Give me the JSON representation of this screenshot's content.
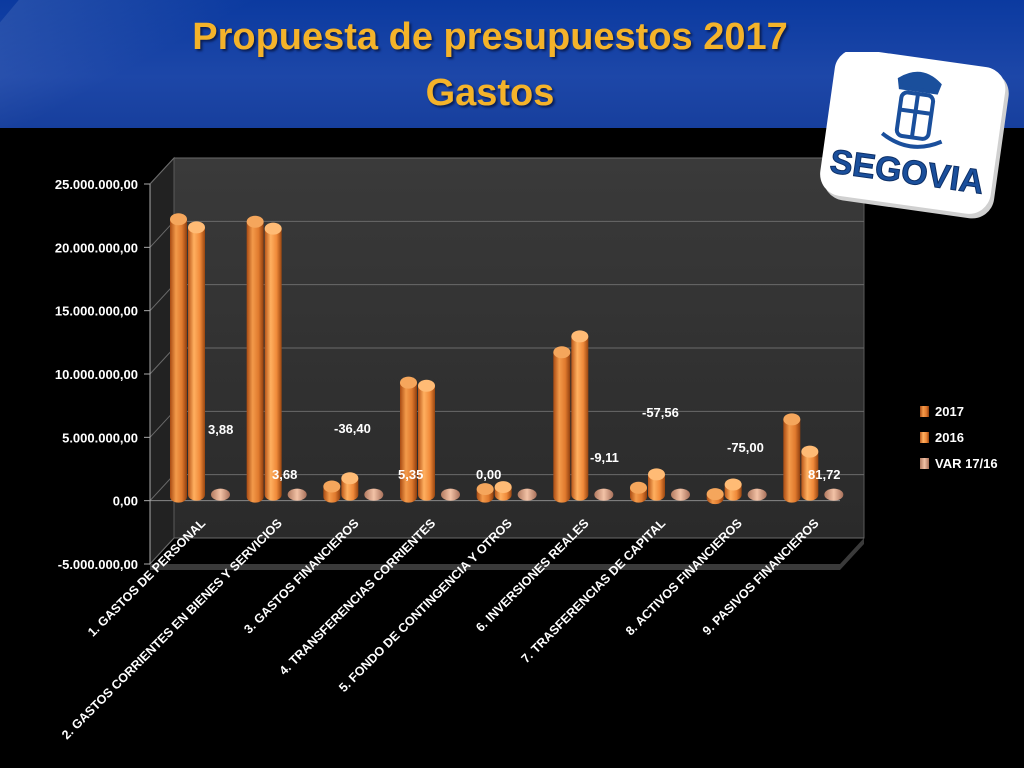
{
  "header": {
    "title_line1": "Propuesta de presupuestos 2017",
    "title_line2": "Gastos"
  },
  "logo": {
    "text": "SEGOVIA",
    "icon": "segovia-crest-icon"
  },
  "colors": {
    "title": "#f4b32a",
    "header_bg": "#1d47a8",
    "series_2017": "#e07a2e",
    "series_2016": "#f08a3a",
    "series_var": "#e3aa8c"
  },
  "chart_data": {
    "type": "bar",
    "categories": [
      "1. GASTOS DE PERSONAL",
      "2. GASTOS CORRIENTES EN BIENES Y SERVICIOS",
      "3. GASTOS FINANCIEROS",
      "4. TRANSFERENCIAS CORRIENTES",
      "5. FONDO DE CONTINGENCIA Y OTROS",
      "6. INVERSIONES REALES",
      "7. TRASFERENCIAS DE CAPITAL",
      "8. ACTIVOS FINANCIEROS",
      "9. PASIVOS FINANCIEROS"
    ],
    "series": [
      {
        "name": "2017",
        "values": [
          21900000,
          21700000,
          800000,
          9000000,
          600000,
          11400000,
          700000,
          200000,
          6100000
        ]
      },
      {
        "name": "2016",
        "values": [
          21100000,
          21000000,
          1300000,
          8600000,
          600000,
          12500000,
          1600000,
          800000,
          3400000
        ]
      },
      {
        "name": "VAR 17/16",
        "values": [
          3.88,
          3.68,
          -36.4,
          5.35,
          0.0,
          -9.11,
          -57.56,
          -75.0,
          81.72
        ]
      }
    ],
    "data_labels": [
      "3,88",
      "3,68",
      "-36,40",
      "5,35",
      "0,00",
      "-9,11",
      "-57,56",
      "-75,00",
      "81,72"
    ],
    "y_ticks": [
      "25.000.000,00",
      "20.000.000,00",
      "15.000.000,00",
      "10.000.000,00",
      "5.000.000,00",
      "0,00",
      "-5.000.000,00"
    ],
    "ylim": [
      -5000000,
      25000000
    ],
    "legend_position": "right",
    "grid": true
  }
}
